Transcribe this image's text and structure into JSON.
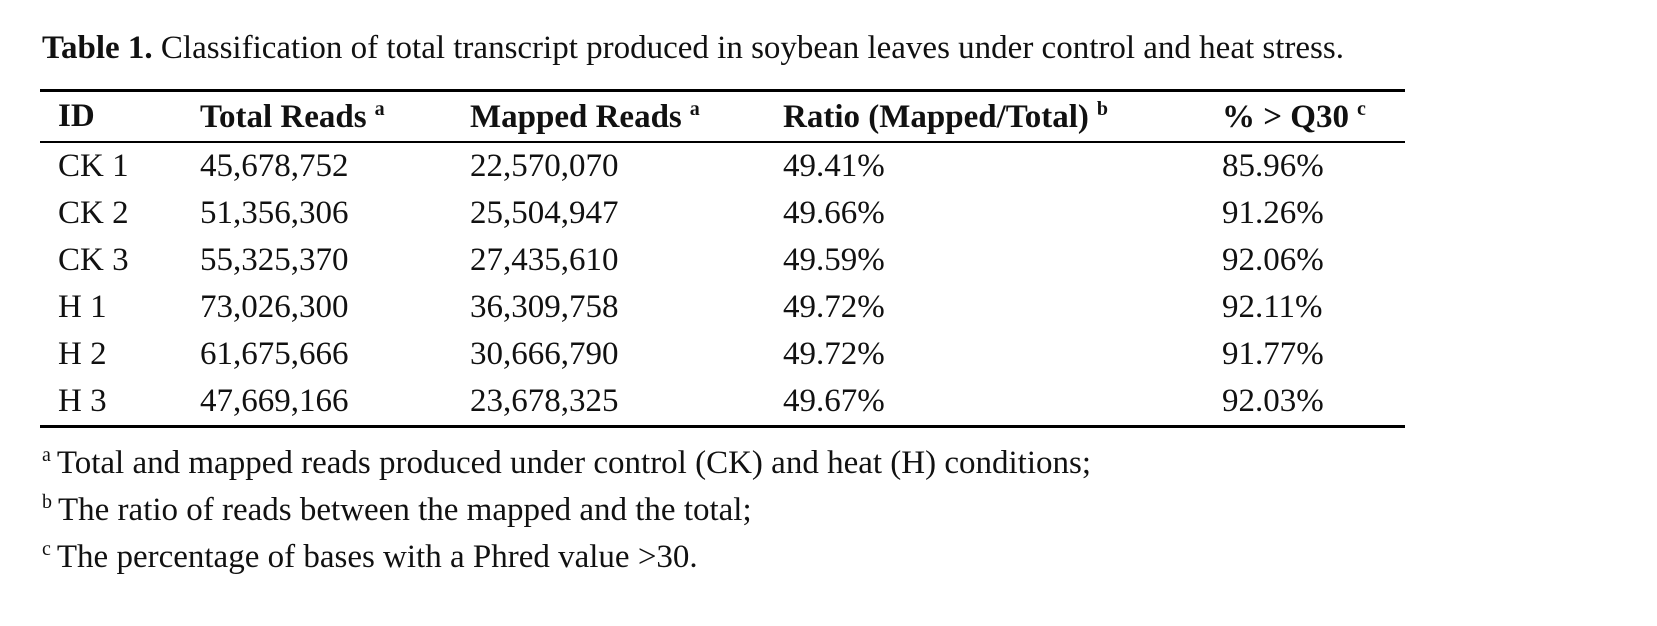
{
  "caption": {
    "label": "Table 1.",
    "text": "Classification of total transcript produced in soybean leaves under control and heat stress."
  },
  "table": {
    "columns": [
      {
        "label": "ID"
      },
      {
        "label": "Total Reads",
        "note": "a"
      },
      {
        "label": "Mapped Reads",
        "note": "a"
      },
      {
        "label": "Ratio (Mapped/Total)",
        "note": "b"
      },
      {
        "label": "% > Q30",
        "note": "c"
      }
    ],
    "rows": [
      [
        "CK 1",
        "45,678,752",
        "22,570,070",
        "49.41%",
        "85.96%"
      ],
      [
        "CK 2",
        "51,356,306",
        "25,504,947",
        "49.66%",
        "91.26%"
      ],
      [
        "CK 3",
        "55,325,370",
        "27,435,610",
        "49.59%",
        "92.06%"
      ],
      [
        "H 1",
        "73,026,300",
        "36,309,758",
        "49.72%",
        "92.11%"
      ],
      [
        "H 2",
        "61,675,666",
        "30,666,790",
        "49.72%",
        "91.77%"
      ],
      [
        "H 3",
        "47,669,166",
        "23,678,325",
        "49.67%",
        "92.03%"
      ]
    ]
  },
  "footnotes": [
    {
      "marker": "a",
      "text": "Total and mapped reads produced under control (CK) and heat (H) conditions;"
    },
    {
      "marker": "b",
      "text": "The ratio of reads between the mapped and the total;"
    },
    {
      "marker": "c",
      "text": "The percentage of bases with a Phred value >30."
    }
  ]
}
